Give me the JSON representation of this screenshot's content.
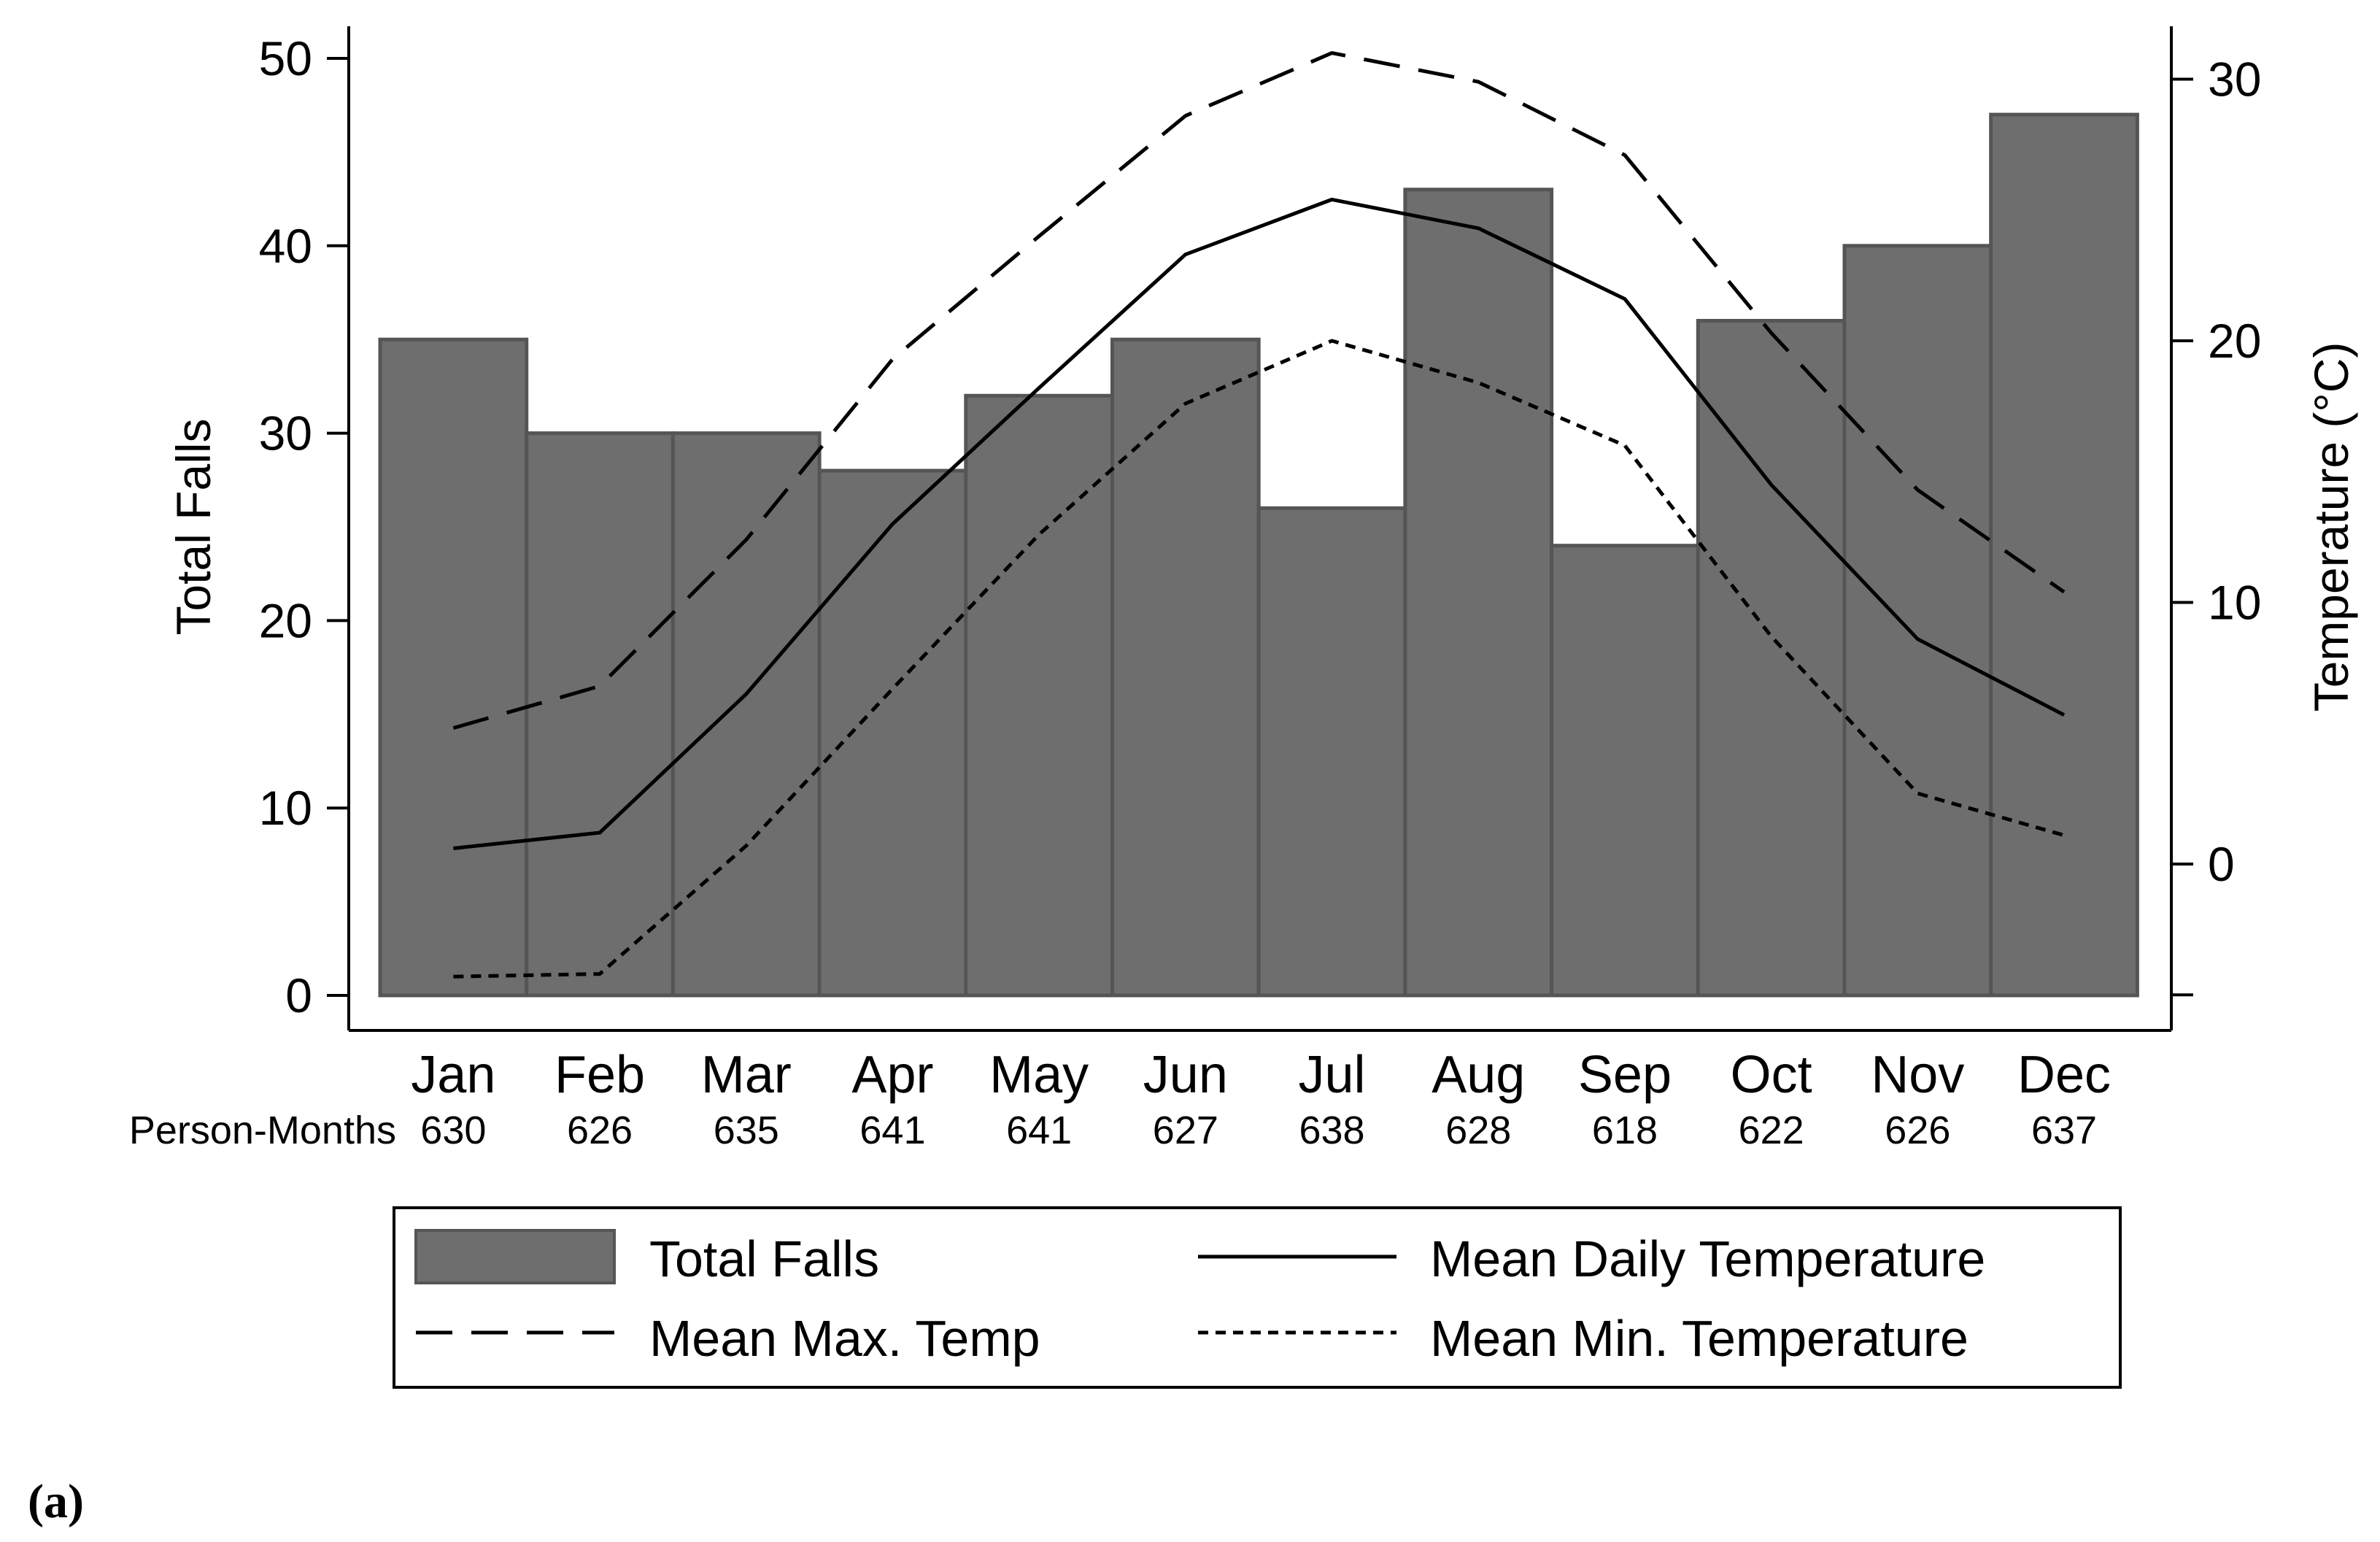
{
  "chart_data": {
    "type": "bar",
    "panel_label": "(a)",
    "categories": [
      "Jan",
      "Feb",
      "Mar",
      "Apr",
      "May",
      "Jun",
      "Jul",
      "Aug",
      "Sep",
      "Oct",
      "Nov",
      "Dec"
    ],
    "person_months_label": "Person-Months",
    "person_months": [
      "630",
      "626",
      "635",
      "641",
      "641",
      "627",
      "638",
      "628",
      "618",
      "622",
      "626",
      "637"
    ],
    "bars": {
      "name": "Total Falls",
      "values": [
        35,
        30,
        30,
        28,
        32,
        35,
        26,
        43,
        24,
        36,
        40,
        47
      ]
    },
    "lines": [
      {
        "name": "Mean Daily Temperature",
        "style": "solid",
        "axis": "right",
        "values": [
          0.6,
          1.2,
          6.5,
          13.0,
          18.2,
          23.3,
          25.4,
          24.3,
          21.6,
          14.5,
          8.6,
          5.7
        ]
      },
      {
        "name": "Mean Max. Temp",
        "style": "longdash",
        "axis": "right",
        "values": [
          5.2,
          6.8,
          12.4,
          19.3,
          24.0,
          28.6,
          31.0,
          29.9,
          27.1,
          20.3,
          14.3,
          10.4
        ]
      },
      {
        "name": "Mean Min. Temperature",
        "style": "shortdash",
        "axis": "right",
        "values": [
          -4.3,
          -4.2,
          0.7,
          6.7,
          12.6,
          17.6,
          20.0,
          18.4,
          16.0,
          8.7,
          2.7,
          1.1
        ]
      }
    ],
    "ylabel_left": "Total Falls",
    "ylim_left": [
      0,
      50
    ],
    "yticks_left": [
      "0",
      "10",
      "20",
      "30",
      "40",
      "50"
    ],
    "ylabel_right": "Temperature (°C)",
    "ylim_right": [
      -5,
      31
    ],
    "yticks_right": [
      "0",
      "10",
      "20",
      "30"
    ],
    "legend_order": [
      "Total Falls",
      "Mean Daily Temperature",
      "Mean Max. Temp",
      "Mean Min. Temperature"
    ],
    "legend_position": "bottom",
    "colors": {
      "bar_fill": "#6e6e6e",
      "bar_edge": "#555555",
      "line": "#000000"
    }
  }
}
